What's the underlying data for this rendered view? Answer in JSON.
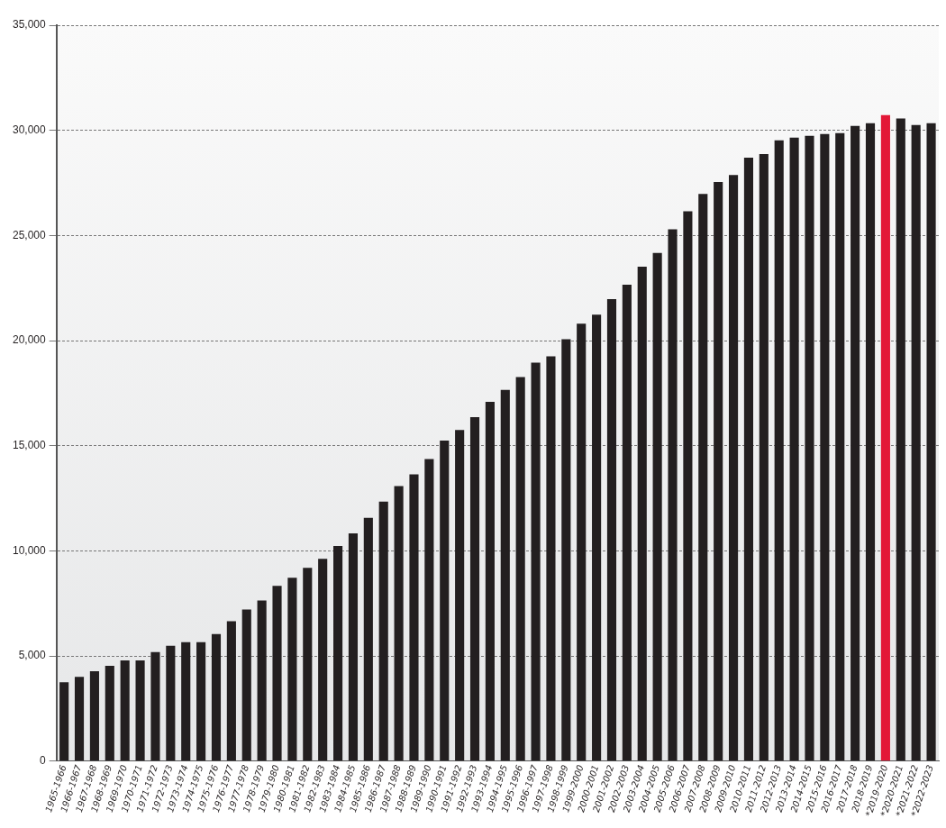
{
  "chart_data": {
    "type": "bar",
    "categories": [
      "1965-1966",
      "1966-1967",
      "1967-1968",
      "1968-1969",
      "1969-1970",
      "1970-1971",
      "1971-1972",
      "1972-1973",
      "1973-1974",
      "1974-1975",
      "1975-1976",
      "1976-1977",
      "1977-1978",
      "1978-1979",
      "1979-1980",
      "1980-1981",
      "1981-1982",
      "1982-1983",
      "1983-1984",
      "1984-1985",
      "1985-1986",
      "1986-1987",
      "1987-1988",
      "1988-1989",
      "1989-1990",
      "1990-1991",
      "1991-1992",
      "1992-1993",
      "1993-1994",
      "1994-1995",
      "1995-1996",
      "1996-1997",
      "1997-1998",
      "1998-1999",
      "1999-2000",
      "2000-2001",
      "2001-2002",
      "2002-2003",
      "2003-2004",
      "2004-2005",
      "2005-2006",
      "2006-2007",
      "2007-2008",
      "2008-2009",
      "2009-2010",
      "2010-2011",
      "2011-2012",
      "2012-2013",
      "2013-2014",
      "2014-2015",
      "2015-2016",
      "2016-2017",
      "2017-2018",
      "2018-2019",
      "*2019-2020",
      "*2020-2021",
      "*2021-2022",
      "*2022-2023"
    ],
    "values": [
      3750,
      4010,
      4270,
      4530,
      4790,
      4790,
      5180,
      5480,
      5650,
      5650,
      6040,
      6650,
      7210,
      7640,
      8330,
      8720,
      9190,
      9620,
      10230,
      10830,
      11570,
      12340,
      13080,
      13640,
      14370,
      15240,
      15750,
      16360,
      17090,
      17650,
      18260,
      18950,
      19250,
      20070,
      20800,
      21230,
      21970,
      22660,
      23520,
      24170,
      25290,
      26150,
      26970,
      27540,
      27880,
      28700,
      28870,
      29520,
      29650,
      29740,
      29820,
      29870,
      30210,
      30340,
      30730,
      30560,
      30250,
      30340
    ],
    "colors": [
      "#231f20",
      "#231f20",
      "#231f20",
      "#231f20",
      "#231f20",
      "#231f20",
      "#231f20",
      "#231f20",
      "#231f20",
      "#231f20",
      "#231f20",
      "#231f20",
      "#231f20",
      "#231f20",
      "#231f20",
      "#231f20",
      "#231f20",
      "#231f20",
      "#231f20",
      "#231f20",
      "#231f20",
      "#231f20",
      "#231f20",
      "#231f20",
      "#231f20",
      "#231f20",
      "#231f20",
      "#231f20",
      "#231f20",
      "#231f20",
      "#231f20",
      "#231f20",
      "#231f20",
      "#231f20",
      "#231f20",
      "#231f20",
      "#231f20",
      "#231f20",
      "#231f20",
      "#231f20",
      "#231f20",
      "#231f20",
      "#231f20",
      "#231f20",
      "#231f20",
      "#231f20",
      "#231f20",
      "#231f20",
      "#231f20",
      "#231f20",
      "#231f20",
      "#231f20",
      "#231f20",
      "#231f20",
      "#e31837",
      "#231f20",
      "#231f20",
      "#231f20"
    ],
    "ylim": [
      0,
      35000
    ],
    "yticks": [
      {
        "value": 0,
        "label": "0"
      },
      {
        "value": 5000,
        "label": "5,000"
      },
      {
        "value": 10000,
        "label": "10,000"
      },
      {
        "value": 15000,
        "label": "15,000"
      },
      {
        "value": 20000,
        "label": "20,000"
      },
      {
        "value": 25000,
        "label": "25,000"
      },
      {
        "value": 30000,
        "label": "30,000"
      },
      {
        "value": 35000,
        "label": "35,000"
      }
    ],
    "grid": "y"
  }
}
